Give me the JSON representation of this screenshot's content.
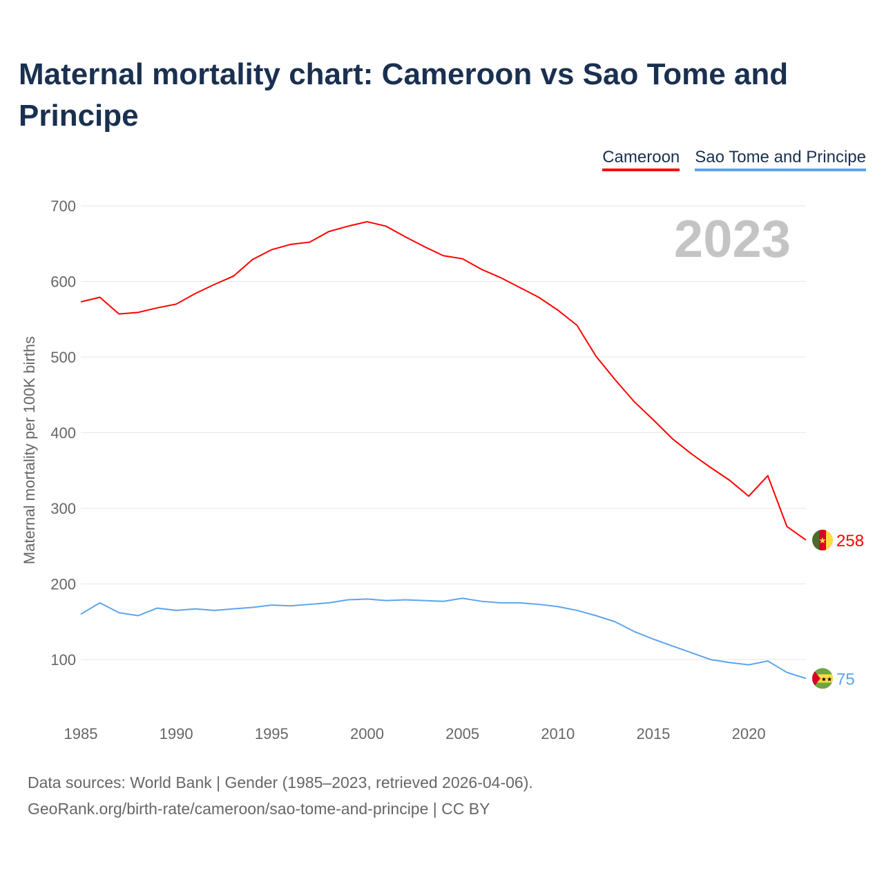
{
  "title": "Maternal mortality chart: Cameroon vs Sao Tome and Principe",
  "footer": {
    "line1": "Data sources: World Bank | Gender (1985–2023, retrieved 2026-04-06).",
    "line2": "GeoRank.org/birth-rate/cameroon/sao-tome-and-principe | CC BY"
  },
  "chart_data": {
    "type": "line",
    "title": "Maternal mortality chart: Cameroon vs Sao Tome and Principe",
    "ylabel": "Maternal mortality per 100K births",
    "xlabel": "",
    "year_watermark": "2023",
    "ylim": [
      40,
      700
    ],
    "xlim": [
      1985,
      2023
    ],
    "yticks": [
      100,
      200,
      300,
      400,
      500,
      600,
      700
    ],
    "xticks": [
      1985,
      1990,
      1995,
      2000,
      2005,
      2010,
      2015,
      2020
    ],
    "grid": true,
    "legend_position": "top-right",
    "x": [
      1985,
      1986,
      1987,
      1988,
      1989,
      1990,
      1991,
      1992,
      1993,
      1994,
      1995,
      1996,
      1997,
      1998,
      1999,
      2000,
      2001,
      2002,
      2003,
      2004,
      2005,
      2006,
      2007,
      2008,
      2009,
      2010,
      2011,
      2012,
      2013,
      2014,
      2015,
      2016,
      2017,
      2018,
      2019,
      2020,
      2021,
      2022,
      2023
    ],
    "series": [
      {
        "name": "Cameroon",
        "color": "#ff0000",
        "end_label": "258",
        "values": [
          573,
          579,
          557,
          559,
          565,
          570,
          584,
          596,
          607,
          629,
          642,
          649,
          652,
          666,
          673,
          679,
          673,
          659,
          646,
          634,
          630,
          616,
          605,
          592,
          579,
          562,
          542,
          501,
          470,
          441,
          417,
          392,
          372,
          354,
          337,
          316,
          343,
          276,
          258
        ]
      },
      {
        "name": "Sao Tome and Principe",
        "color": "#5ba4ec",
        "end_label": "75",
        "values": [
          160,
          175,
          162,
          158,
          168,
          165,
          167,
          165,
          167,
          169,
          172,
          171,
          173,
          175,
          179,
          180,
          178,
          179,
          178,
          177,
          181,
          177,
          175,
          175,
          173,
          170,
          165,
          158,
          150,
          137,
          127,
          118,
          109,
          100,
          96,
          93,
          98,
          83,
          75
        ]
      }
    ]
  }
}
